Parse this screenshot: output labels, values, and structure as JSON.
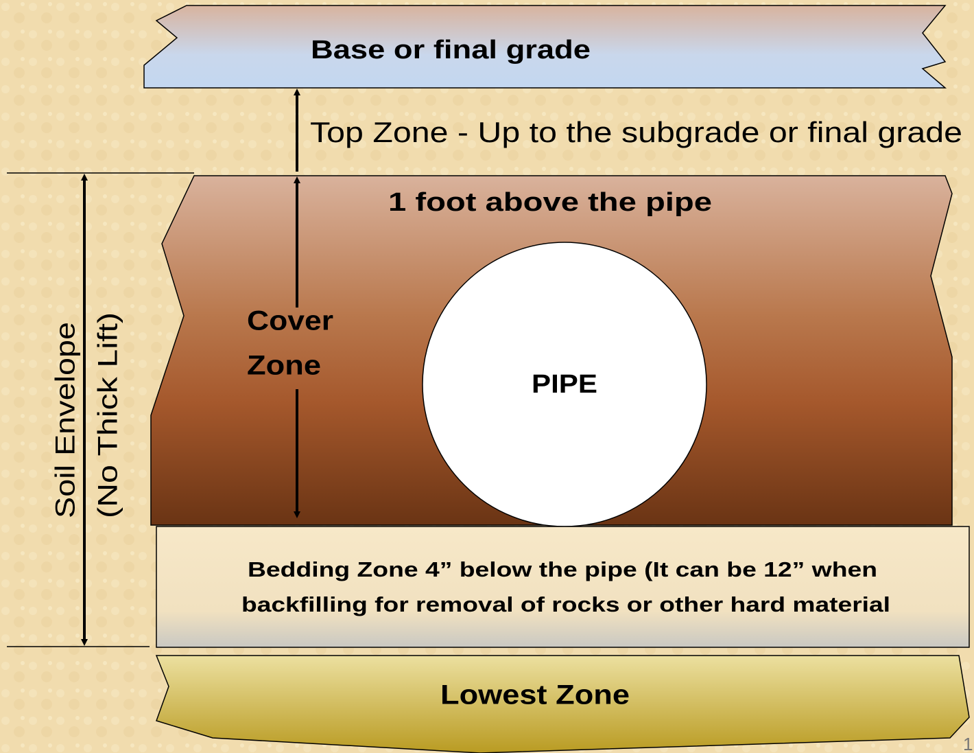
{
  "top_band": {
    "label": "Base or final grade"
  },
  "top_zone": {
    "label": "Top Zone - Up to the subgrade or final grade"
  },
  "cover_band": {
    "label": "1 foot above the pipe"
  },
  "cover_zone": {
    "label_line1": "Cover",
    "label_line2": "Zone"
  },
  "pipe": {
    "label": "PIPE"
  },
  "soil_envelope": {
    "label_line1": "Soil Envelope",
    "label_line2": "(No Thick Lift)"
  },
  "bedding_zone": {
    "label_line1": "Bedding Zone 4” below the pipe (It can be 12” when",
    "label_line2": "backfilling for removal of rocks or other hard material"
  },
  "lowest_zone": {
    "label": "Lowest Zone"
  },
  "page_number": "1"
}
